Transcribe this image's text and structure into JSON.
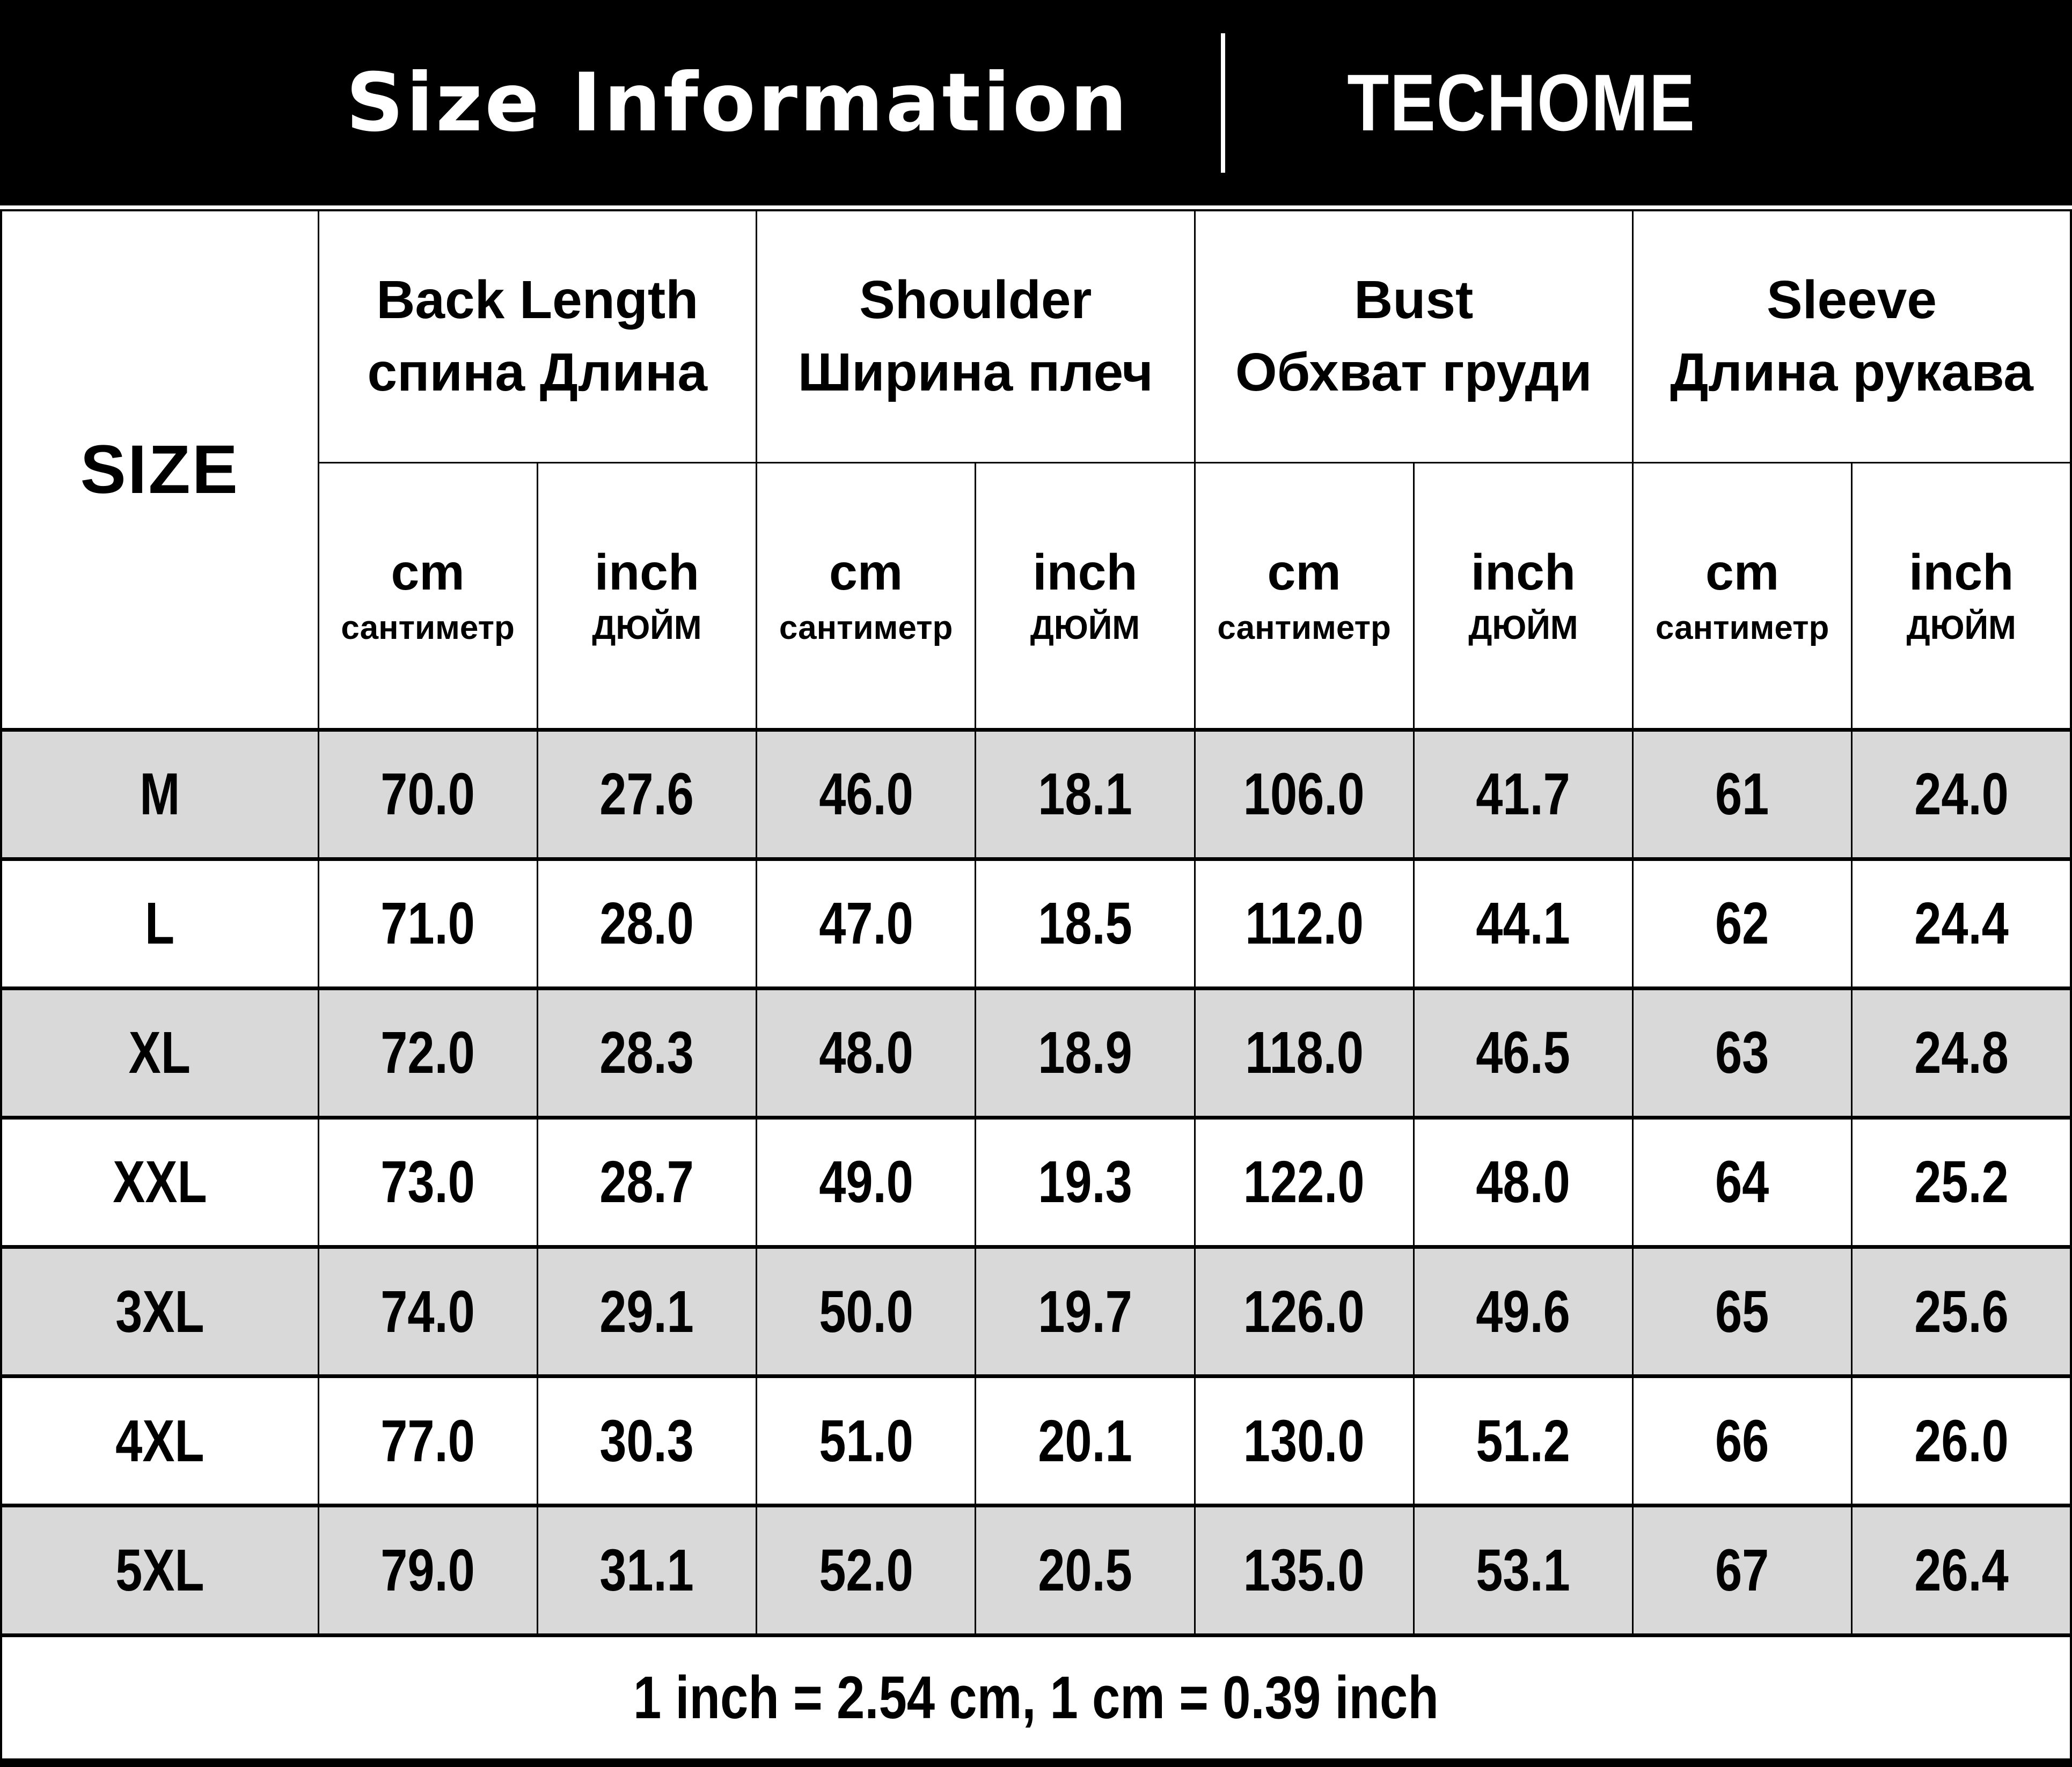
{
  "header": {
    "title": "Size Information",
    "brand": "TECHOME"
  },
  "table": {
    "size_column_label": "SIZE",
    "groups": [
      {
        "en": "Back Length",
        "ru": "спина Длина"
      },
      {
        "en": "Shoulder",
        "ru": "Ширина плеч"
      },
      {
        "en": "Bust",
        "ru": "Обхват груди"
      },
      {
        "en": "Sleeve",
        "ru": "Длина рукава"
      }
    ],
    "units": {
      "cm": {
        "en": "cm",
        "ru": "сантиметр"
      },
      "inch": {
        "en": "inch",
        "ru": "ДЮЙМ"
      }
    },
    "rows": [
      {
        "size": "M",
        "values": [
          "70.0",
          "27.6",
          "46.0",
          "18.1",
          "106.0",
          "41.7",
          "61",
          "24.0"
        ]
      },
      {
        "size": "L",
        "values": [
          "71.0",
          "28.0",
          "47.0",
          "18.5",
          "112.0",
          "44.1",
          "62",
          "24.4"
        ]
      },
      {
        "size": "XL",
        "values": [
          "72.0",
          "28.3",
          "48.0",
          "18.9",
          "118.0",
          "46.5",
          "63",
          "24.8"
        ]
      },
      {
        "size": "XXL",
        "values": [
          "73.0",
          "28.7",
          "49.0",
          "19.3",
          "122.0",
          "48.0",
          "64",
          "25.2"
        ]
      },
      {
        "size": "3XL",
        "values": [
          "74.0",
          "29.1",
          "50.0",
          "19.7",
          "126.0",
          "49.6",
          "65",
          "25.6"
        ]
      },
      {
        "size": "4XL",
        "values": [
          "77.0",
          "30.3",
          "51.0",
          "20.1",
          "130.0",
          "51.2",
          "66",
          "26.0"
        ]
      },
      {
        "size": "5XL",
        "values": [
          "79.0",
          "31.1",
          "52.0",
          "20.5",
          "135.0",
          "53.1",
          "67",
          "26.4"
        ]
      }
    ]
  },
  "footer": {
    "note": "1 inch = 2.54 cm, 1 cm = 0.39 inch"
  },
  "colors": {
    "band_bg": "#000000",
    "band_text": "#ffffff",
    "row_shaded": "#d9d9d9",
    "row_plain": "#ffffff",
    "border": "#000000",
    "text": "#000000"
  },
  "chart_data": {
    "type": "table",
    "title": "Size Information",
    "brand": "TECHOME",
    "columns": [
      "SIZE",
      "Back Length / спина Длина (cm)",
      "Back Length / спина Длина (inch)",
      "Shoulder / Ширина плеч (cm)",
      "Shoulder / Ширина плеч (inch)",
      "Bust / Обхват груди (cm)",
      "Bust / Обхват груди (inch)",
      "Sleeve / Длина рукава (cm)",
      "Sleeve / Длина рукава (inch)"
    ],
    "rows": [
      [
        "M",
        70.0,
        27.6,
        46.0,
        18.1,
        106.0,
        41.7,
        61,
        24.0
      ],
      [
        "L",
        71.0,
        28.0,
        47.0,
        18.5,
        112.0,
        44.1,
        62,
        24.4
      ],
      [
        "XL",
        72.0,
        28.3,
        48.0,
        18.9,
        118.0,
        46.5,
        63,
        24.8
      ],
      [
        "XXL",
        73.0,
        28.7,
        49.0,
        19.3,
        122.0,
        48.0,
        64,
        25.2
      ],
      [
        "3XL",
        74.0,
        29.1,
        50.0,
        19.7,
        126.0,
        49.6,
        65,
        25.6
      ],
      [
        "4XL",
        77.0,
        30.3,
        51.0,
        20.1,
        130.0,
        51.2,
        66,
        26.0
      ],
      [
        "5XL",
        79.0,
        31.1,
        52.0,
        20.5,
        135.0,
        53.1,
        67,
        26.4
      ]
    ],
    "note": "1 inch = 2.54 cm, 1 cm = 0.39 inch"
  }
}
